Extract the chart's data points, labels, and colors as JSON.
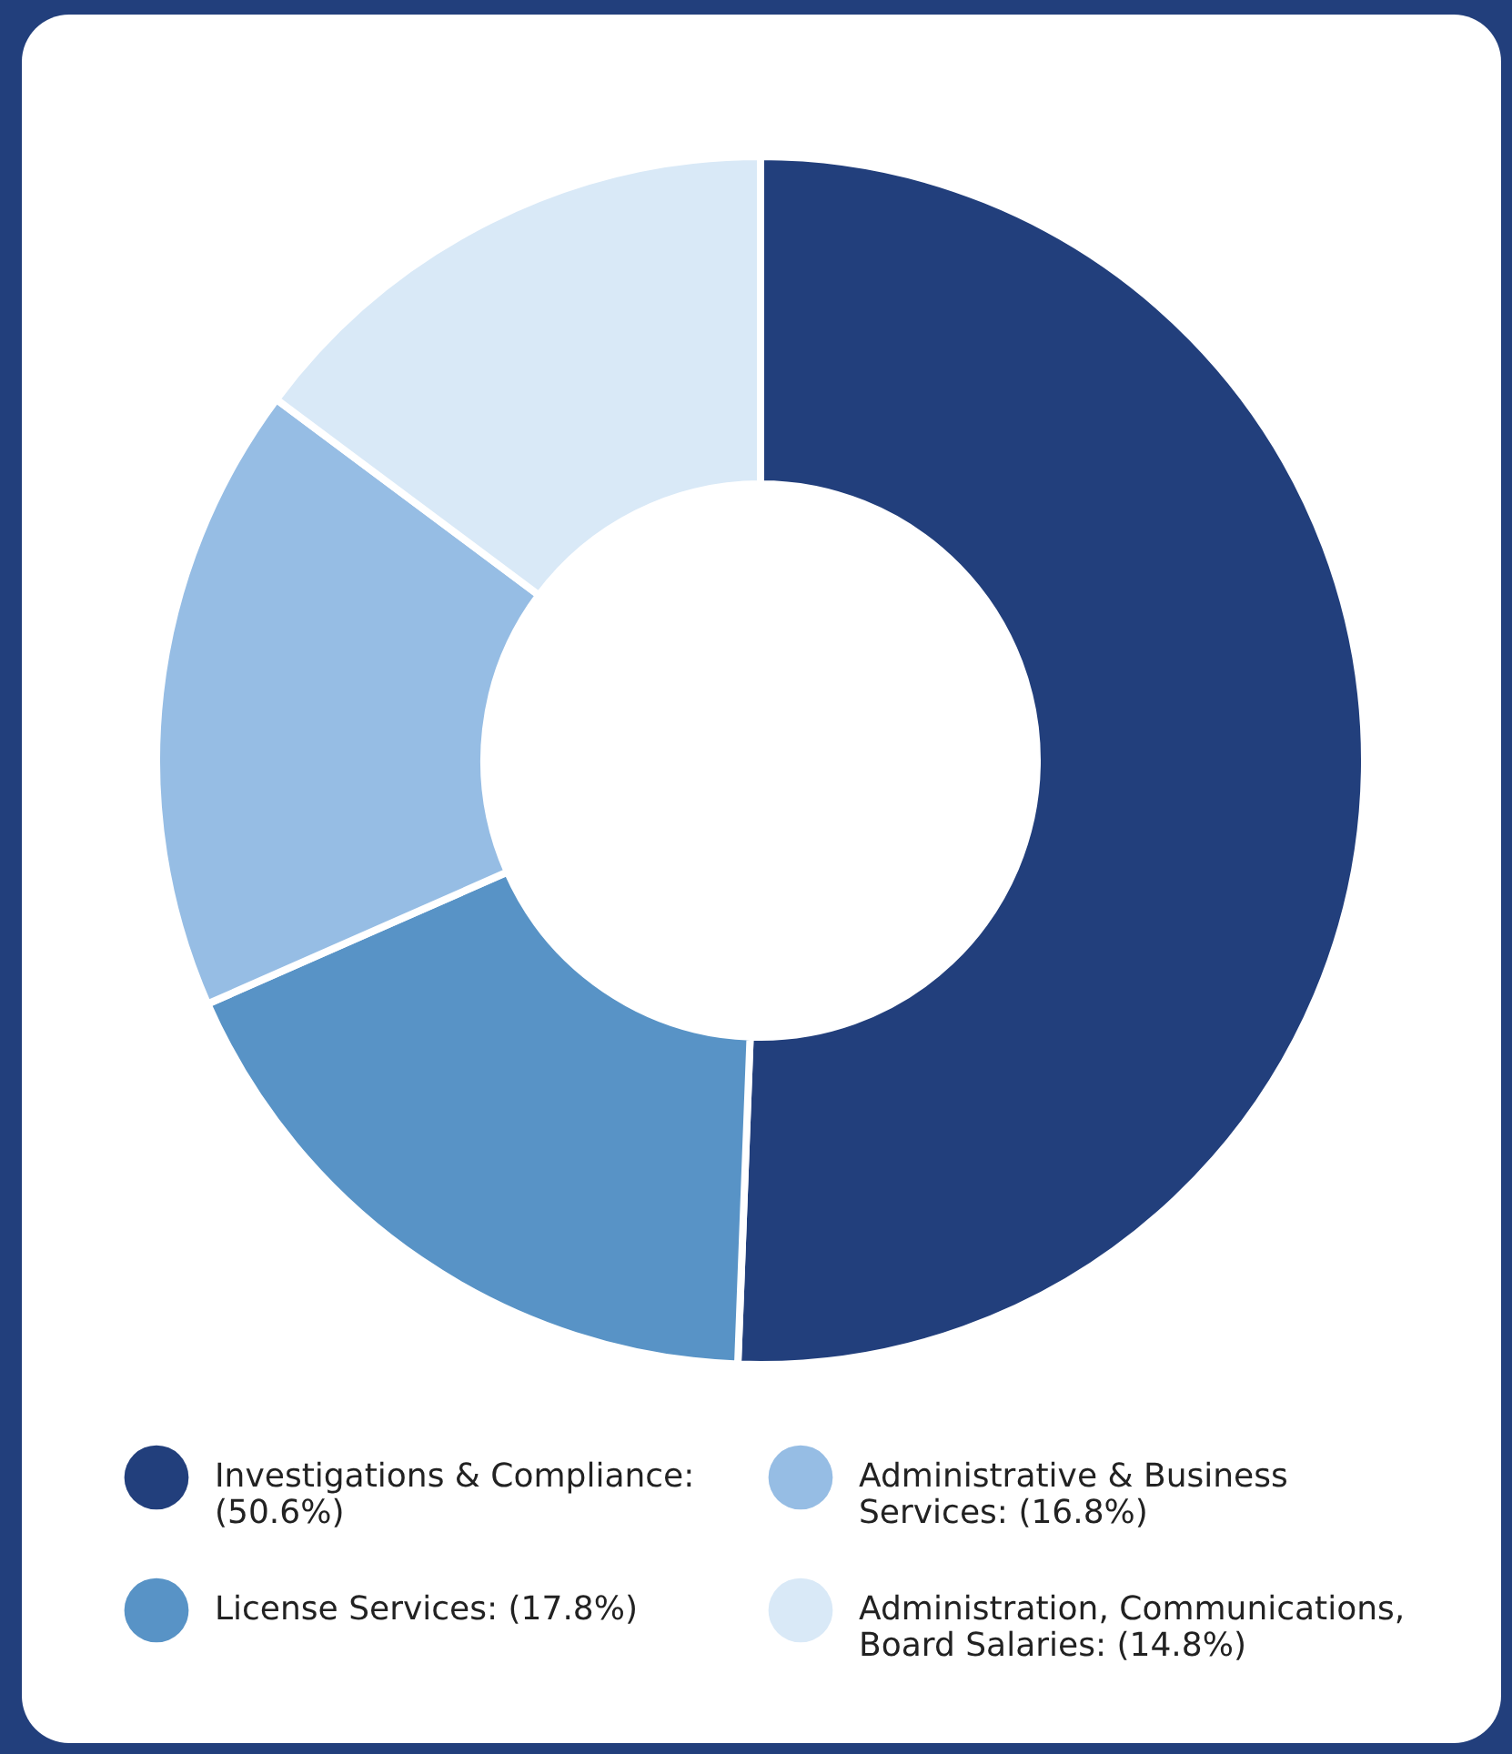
{
  "chart_data": {
    "type": "donut",
    "categories": [
      "Investigations & Compliance: (50.6%)",
      "License Services: (17.8%)",
      "Administrative & Business Services: (16.8%)",
      "Administration, Communications, Board Salaries: (14.8%)"
    ],
    "values": [
      50.6,
      17.8,
      16.8,
      14.8
    ],
    "colors": [
      "#223f7c",
      "#5893c6",
      "#96bde4",
      "#d9e9f7"
    ],
    "legend": "bottom"
  }
}
